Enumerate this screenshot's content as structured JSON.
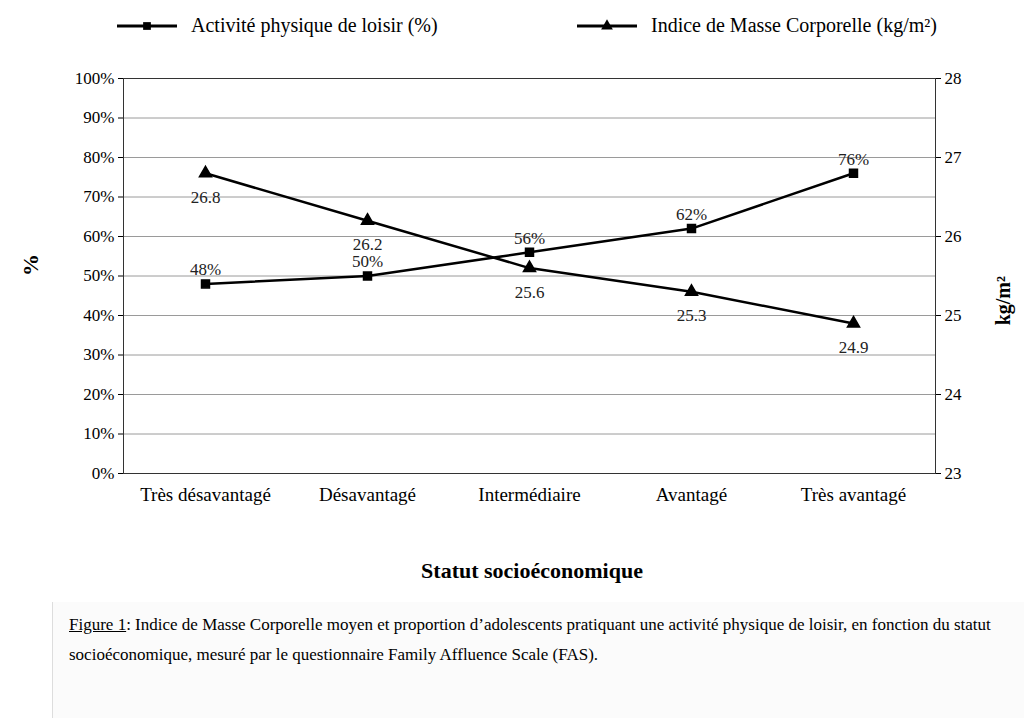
{
  "chart_data": {
    "type": "line",
    "caption": "Figure 1: Indice de Masse Corporelle moyen et proportion d’adolescents pratiquant une activité physique de loisir, en fonction du statut socioéconomique, mesuré par le questionnaire Family Affluence Scale (FAS).",
    "x_label": "Statut socioéconomique",
    "y_label": "%",
    "y2_label": "kg/m²",
    "categories": [
      "Très désavantagé",
      "Désavantagé",
      "Intermédiaire",
      "Avantagé",
      "Très avantagé"
    ],
    "series": [
      {
        "name": "Activité physique de loisir (%)",
        "color": "#000000",
        "marker": "square",
        "axis": "y",
        "values": [
          48,
          50,
          56,
          62,
          76
        ],
        "value_labels": [
          "48%",
          "50%",
          "56%",
          "62%",
          "76%"
        ]
      },
      {
        "name": "Indice de Masse Corporelle (kg/m²)",
        "color": "#000000",
        "marker": "triangle",
        "axis": "y2",
        "values": [
          26.8,
          26.2,
          25.6,
          25.3,
          24.9
        ]
      }
    ],
    "ylim": [
      0,
      100
    ],
    "yticks": [
      {
        "value": 0,
        "label": "0%"
      },
      {
        "value": 10,
        "label": "10%"
      },
      {
        "value": 20,
        "label": "20%"
      },
      {
        "value": 30,
        "label": "30%"
      },
      {
        "value": 40,
        "label": "40%"
      },
      {
        "value": 50,
        "label": "50%"
      },
      {
        "value": 60,
        "label": "60%"
      },
      {
        "value": 70,
        "label": "70%"
      },
      {
        "value": 80,
        "label": "80%"
      },
      {
        "value": 90,
        "label": "90%"
      },
      {
        "value": 100,
        "label": "100%"
      }
    ],
    "y2lim": [
      23,
      28
    ],
    "y2ticks": [
      23,
      24,
      25,
      26,
      27,
      28
    ],
    "grid": true,
    "legend": "top",
    "data_labels": true
  }
}
